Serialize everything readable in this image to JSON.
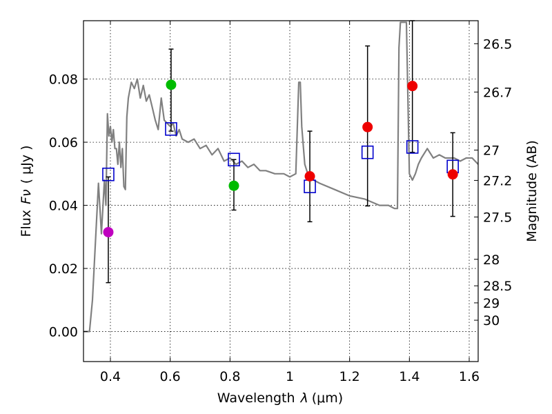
{
  "chart_data": {
    "type": "scatter",
    "title": "",
    "xlabel_text": "Wavelength",
    "xlabel_symbol": "λ",
    "xlabel_unit": "(μm)",
    "ylabel_text": "Flux",
    "ylabel_symbol": "Fν",
    "ylabel_unit": "( μJy )",
    "y2label": "Magnitude (AB)",
    "xlim": [
      0.31,
      1.63
    ],
    "ylim": [
      -0.0095,
      0.0985
    ],
    "grid": true,
    "x_ticks": [
      0.4,
      0.6,
      0.8,
      1.0,
      1.2,
      1.4,
      1.6
    ],
    "x_tick_labels": [
      "0.4",
      "0.6",
      "0.8",
      "1",
      "1.2",
      "1.4",
      "1.6"
    ],
    "y_ticks": [
      0.0,
      0.02,
      0.04,
      0.06,
      0.08
    ],
    "y_tick_labels": [
      "0.00",
      "0.02",
      "0.04",
      "0.06",
      "0.08"
    ],
    "y2_ticks": [
      {
        "label": "26.5",
        "flux": 0.0912
      },
      {
        "label": "26.7",
        "flux": 0.0759
      },
      {
        "label": "27",
        "flux": 0.0575
      },
      {
        "label": "27.2",
        "flux": 0.0479
      },
      {
        "label": "27.5",
        "flux": 0.0363
      },
      {
        "label": "28",
        "flux": 0.0229
      },
      {
        "label": "28.5",
        "flux": 0.0145
      },
      {
        "label": "29",
        "flux": 0.0091
      },
      {
        "label": "30",
        "flux": 0.0036
      }
    ],
    "series": [
      {
        "name": "model_spectrum",
        "kind": "line",
        "color": "#808080",
        "x": [
          0.31,
          0.33,
          0.34,
          0.36,
          0.37,
          0.38,
          0.385,
          0.39,
          0.395,
          0.4,
          0.405,
          0.41,
          0.415,
          0.42,
          0.425,
          0.43,
          0.435,
          0.44,
          0.445,
          0.45,
          0.455,
          0.46,
          0.47,
          0.48,
          0.49,
          0.5,
          0.51,
          0.52,
          0.53,
          0.54,
          0.55,
          0.56,
          0.57,
          0.58,
          0.59,
          0.6,
          0.61,
          0.62,
          0.63,
          0.64,
          0.66,
          0.68,
          0.7,
          0.72,
          0.74,
          0.76,
          0.78,
          0.8,
          0.82,
          0.84,
          0.86,
          0.88,
          0.9,
          0.92,
          0.95,
          0.98,
          1.0,
          1.02,
          1.03,
          1.035,
          1.04,
          1.05,
          1.06,
          1.08,
          1.1,
          1.15,
          1.2,
          1.25,
          1.3,
          1.33,
          1.35,
          1.36,
          1.365,
          1.37,
          1.38,
          1.39,
          1.4,
          1.41,
          1.42,
          1.43,
          1.44,
          1.46,
          1.48,
          1.5,
          1.52,
          1.55,
          1.57,
          1.59,
          1.61,
          1.63
        ],
        "y": [
          0.0,
          0.0,
          0.01,
          0.047,
          0.031,
          0.048,
          0.04,
          0.069,
          0.062,
          0.065,
          0.06,
          0.064,
          0.058,
          0.058,
          0.053,
          0.06,
          0.052,
          0.058,
          0.046,
          0.045,
          0.068,
          0.074,
          0.079,
          0.077,
          0.08,
          0.074,
          0.078,
          0.073,
          0.075,
          0.071,
          0.067,
          0.064,
          0.074,
          0.067,
          0.066,
          0.065,
          0.066,
          0.062,
          0.064,
          0.061,
          0.06,
          0.061,
          0.058,
          0.059,
          0.056,
          0.058,
          0.054,
          0.055,
          0.053,
          0.054,
          0.052,
          0.053,
          0.051,
          0.051,
          0.05,
          0.05,
          0.049,
          0.05,
          0.079,
          0.079,
          0.065,
          0.053,
          0.05,
          0.048,
          0.047,
          0.045,
          0.043,
          0.042,
          0.04,
          0.04,
          0.039,
          0.039,
          0.09,
          0.098,
          0.098,
          0.098,
          0.05,
          0.048,
          0.05,
          0.053,
          0.055,
          0.058,
          0.055,
          0.056,
          0.055,
          0.055,
          0.054,
          0.055,
          0.055,
          0.053
        ]
      },
      {
        "name": "model_photometry",
        "kind": "open_square",
        "color": "#0000cc",
        "x": [
          0.393,
          0.603,
          0.813,
          1.067,
          1.26,
          1.41,
          1.545
        ],
        "y": [
          0.0498,
          0.0642,
          0.0545,
          0.046,
          0.0568,
          0.0585,
          0.0523
        ]
      },
      {
        "name": "observed_uv",
        "kind": "point",
        "color": "#bf00bf",
        "x": [
          0.393
        ],
        "y": [
          0.0315
        ],
        "yerr_low": [
          0.0155
        ],
        "yerr_high": [
          0.049
        ]
      },
      {
        "name": "observed_optical",
        "kind": "point",
        "color": "#00bb00",
        "x": [
          0.603,
          0.813
        ],
        "y": [
          0.0782,
          0.0462
        ],
        "yerr_low": [
          0.0635,
          0.0385
        ],
        "yerr_high": [
          0.0895,
          0.0545
        ]
      },
      {
        "name": "observed_nir",
        "kind": "point",
        "color": "#ee0000",
        "x": [
          1.067,
          1.26,
          1.41,
          1.545
        ],
        "y": [
          0.0492,
          0.0648,
          0.0778,
          0.0498
        ],
        "yerr_low": [
          0.0348,
          0.0398,
          0.0568,
          0.0365
        ],
        "yerr_high": [
          0.0635,
          0.0905,
          0.0985,
          0.063
        ]
      }
    ]
  }
}
